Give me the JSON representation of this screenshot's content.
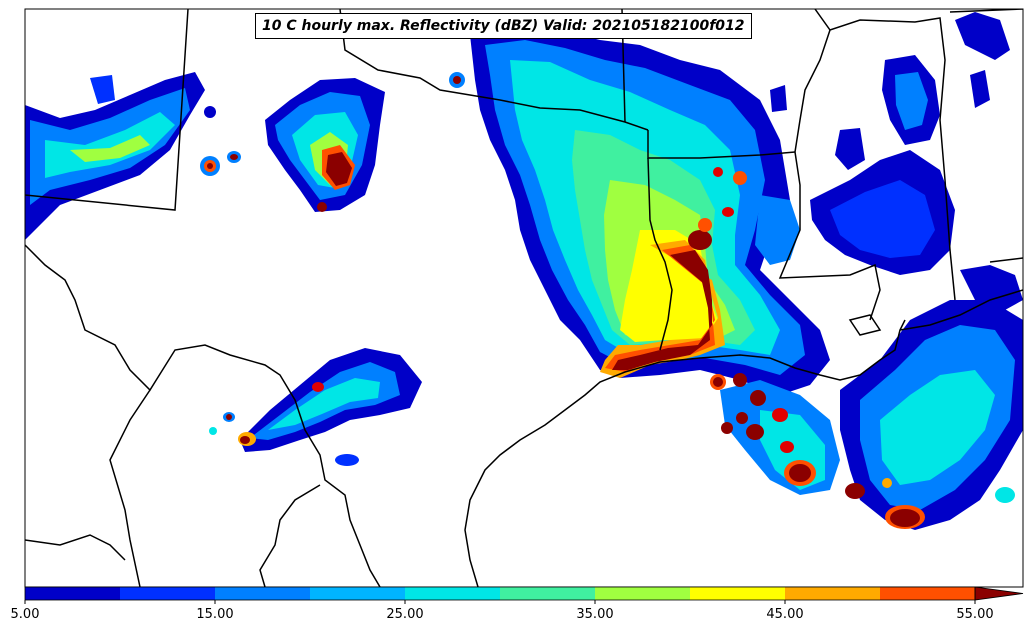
{
  "title": "10 C hourly max. Reflectivity (dBZ) Valid: 202105182100f012",
  "colorbar": {
    "min": 5,
    "max": 55,
    "step": 5,
    "extend": "max",
    "colors": [
      "#0000c8",
      "#0030ff",
      "#0080ff",
      "#00b4ff",
      "#00e6e6",
      "#40f0a0",
      "#a0ff40",
      "#ffff00",
      "#ffaa00",
      "#ff5000",
      "#e00000",
      "#8b0000"
    ],
    "tick_labels": [
      "5.00",
      "15.00",
      "25.00",
      "35.00",
      "45.00",
      "55.00"
    ]
  },
  "map": {
    "background": "#ffffff",
    "border_color": "#000000"
  }
}
